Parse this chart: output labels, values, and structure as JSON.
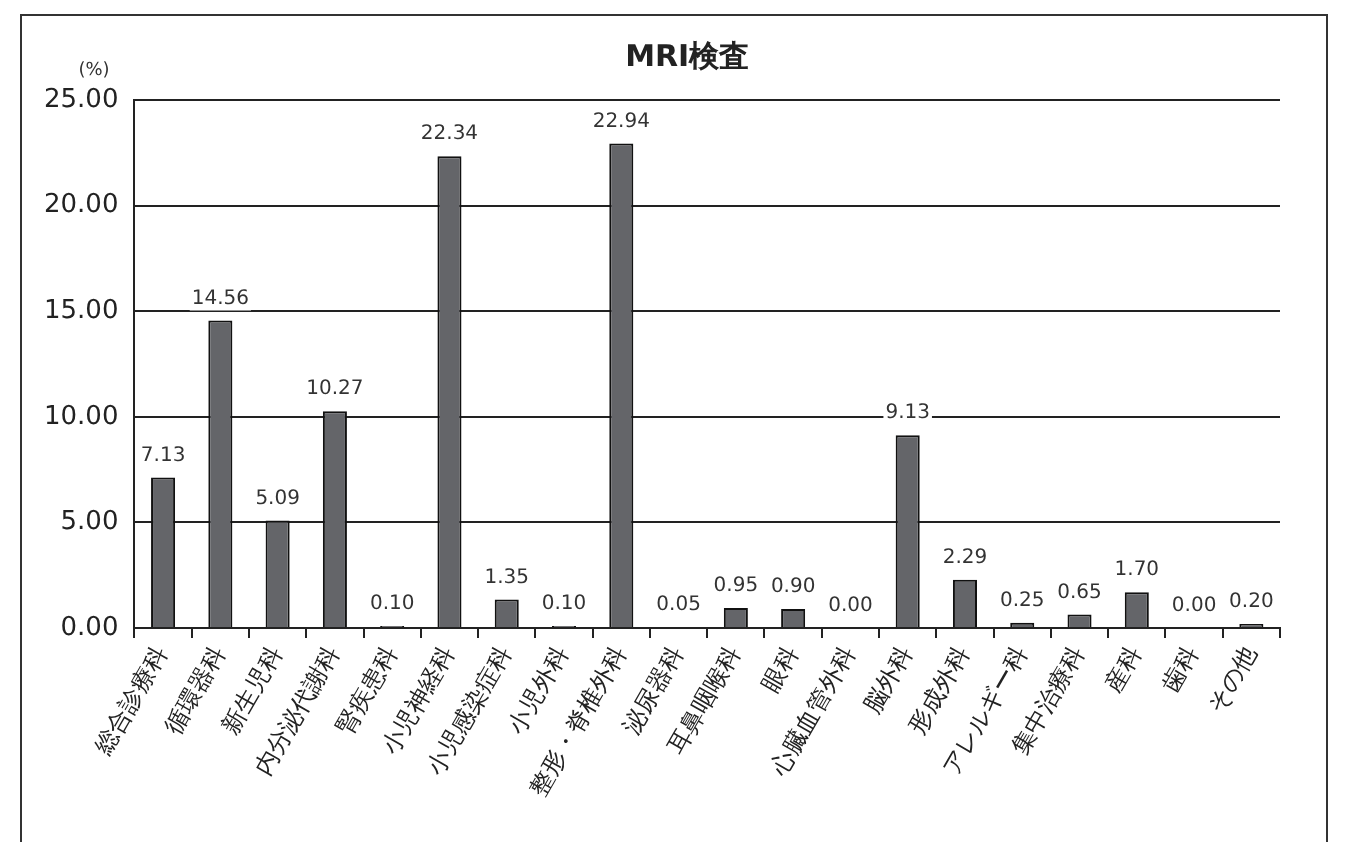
{
  "chart_data": {
    "type": "bar",
    "title": "MRI検査",
    "ylabel": "(%)",
    "categories": [
      "総合診療科",
      "循環器科",
      "新生児科",
      "内分泌代謝科",
      "腎疾患科",
      "小児神経科",
      "小児感染症科",
      "小児外科",
      "整形・脊椎外科",
      "泌尿器科",
      "耳鼻咽喉科",
      "眼科",
      "心臓血管外科",
      "脳外科",
      "形成外科",
      "アレルギー科",
      "集中治療科",
      "産科",
      "歯科",
      "その他"
    ],
    "values": [
      7.13,
      14.56,
      5.09,
      10.27,
      0.1,
      22.34,
      1.35,
      0.1,
      22.94,
      0.05,
      0.95,
      0.9,
      0.0,
      9.13,
      2.29,
      0.25,
      0.65,
      1.7,
      0.0,
      0.2
    ],
    "value_labels": [
      "7.13",
      "14.56",
      "5.09",
      "10.27",
      "0.10",
      "22.34",
      "1.35",
      "0.10",
      "22.94",
      "0.05",
      "0.95",
      "0.90",
      "0.00",
      "9.13",
      "2.29",
      "0.25",
      "0.65",
      "1.70",
      "0.00",
      "0.20"
    ],
    "color": "#646569",
    "ylim": [
      0,
      25
    ],
    "yticks": [
      {
        "value": 0,
        "label": "0.00"
      },
      {
        "value": 5,
        "label": "5.00"
      },
      {
        "value": 10,
        "label": "10.00"
      },
      {
        "value": 15,
        "label": "15.00"
      },
      {
        "value": 20,
        "label": "20.00"
      },
      {
        "value": 25,
        "label": "25.00"
      }
    ],
    "grid": "y",
    "legend": false
  }
}
